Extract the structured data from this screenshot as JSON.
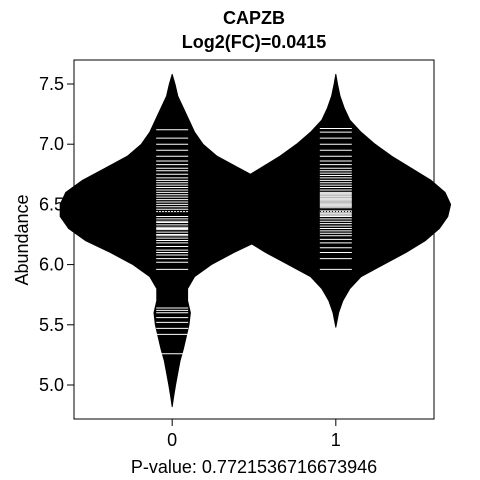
{
  "chart_data": {
    "type": "beanplot",
    "title": "CAPZB",
    "subtitle": "Log2(FC)=0.0415",
    "xlabel": "P-value: 0.7721536716673946",
    "ylabel": "Abundance",
    "categories": [
      "0",
      "1"
    ],
    "ylim": [
      4.8,
      7.6
    ],
    "xlim": [
      -0.6,
      1.6
    ],
    "yticks": [
      5.0,
      5.5,
      6.0,
      6.5,
      7.0,
      7.5
    ],
    "ytick_labels": [
      "5.0",
      "5.5",
      "6.0",
      "6.5",
      "7.0",
      "7.5"
    ],
    "overall_mean": 6.44,
    "colors": {
      "bean": "#000000",
      "line": "#ffffff"
    },
    "groups": [
      {
        "name": "0",
        "mean": 6.42,
        "density": [
          [
            4.82,
            0.0
          ],
          [
            4.9,
            0.005
          ],
          [
            5.0,
            0.012
          ],
          [
            5.1,
            0.02
          ],
          [
            5.2,
            0.028
          ],
          [
            5.3,
            0.04
          ],
          [
            5.4,
            0.05
          ],
          [
            5.5,
            0.06
          ],
          [
            5.6,
            0.065
          ],
          [
            5.7,
            0.055
          ],
          [
            5.8,
            0.055
          ],
          [
            5.9,
            0.08
          ],
          [
            6.0,
            0.14
          ],
          [
            6.1,
            0.22
          ],
          [
            6.2,
            0.31
          ],
          [
            6.3,
            0.37
          ],
          [
            6.4,
            0.4
          ],
          [
            6.5,
            0.4
          ],
          [
            6.6,
            0.38
          ],
          [
            6.7,
            0.32
          ],
          [
            6.8,
            0.24
          ],
          [
            6.9,
            0.16
          ],
          [
            7.0,
            0.11
          ],
          [
            7.1,
            0.08
          ],
          [
            7.2,
            0.06
          ],
          [
            7.3,
            0.04
          ],
          [
            7.4,
            0.02
          ],
          [
            7.5,
            0.01
          ],
          [
            7.58,
            0.0
          ]
        ],
        "values": [
          5.26,
          5.42,
          5.47,
          5.52,
          5.56,
          5.6,
          5.62,
          5.64,
          5.96,
          6.02,
          6.05,
          6.08,
          6.1,
          6.12,
          6.15,
          6.18,
          6.2,
          6.22,
          6.24,
          6.25,
          6.27,
          6.29,
          6.3,
          6.31,
          6.33,
          6.35,
          6.36,
          6.38,
          6.4,
          6.42,
          6.44,
          6.46,
          6.48,
          6.5,
          6.52,
          6.54,
          6.56,
          6.58,
          6.6,
          6.62,
          6.64,
          6.66,
          6.68,
          6.7,
          6.72,
          6.75,
          6.78,
          6.8,
          6.83,
          6.86,
          6.9,
          6.95,
          7.0,
          7.05,
          7.12
        ]
      },
      {
        "name": "1",
        "mean": 6.46,
        "density": [
          [
            5.48,
            0.0
          ],
          [
            5.6,
            0.01
          ],
          [
            5.7,
            0.025
          ],
          [
            5.8,
            0.05
          ],
          [
            5.9,
            0.09
          ],
          [
            6.0,
            0.17
          ],
          [
            6.1,
            0.25
          ],
          [
            6.2,
            0.32
          ],
          [
            6.3,
            0.37
          ],
          [
            6.4,
            0.4
          ],
          [
            6.5,
            0.41
          ],
          [
            6.6,
            0.39
          ],
          [
            6.7,
            0.34
          ],
          [
            6.8,
            0.27
          ],
          [
            6.9,
            0.2
          ],
          [
            7.0,
            0.14
          ],
          [
            7.1,
            0.09
          ],
          [
            7.2,
            0.05
          ],
          [
            7.3,
            0.03
          ],
          [
            7.4,
            0.015
          ],
          [
            7.5,
            0.006
          ],
          [
            7.58,
            0.0
          ]
        ],
        "values": [
          5.96,
          6.05,
          6.1,
          6.14,
          6.18,
          6.21,
          6.24,
          6.26,
          6.28,
          6.3,
          6.32,
          6.34,
          6.36,
          6.38,
          6.4,
          6.41,
          6.42,
          6.43,
          6.44,
          6.45,
          6.46,
          6.47,
          6.48,
          6.49,
          6.5,
          6.51,
          6.52,
          6.53,
          6.54,
          6.55,
          6.56,
          6.57,
          6.58,
          6.59,
          6.6,
          6.62,
          6.64,
          6.66,
          6.68,
          6.7,
          6.72,
          6.74,
          6.76,
          6.78,
          6.8,
          6.83,
          6.86,
          6.9,
          6.95,
          7.0,
          7.05,
          7.1,
          7.13
        ]
      }
    ]
  }
}
